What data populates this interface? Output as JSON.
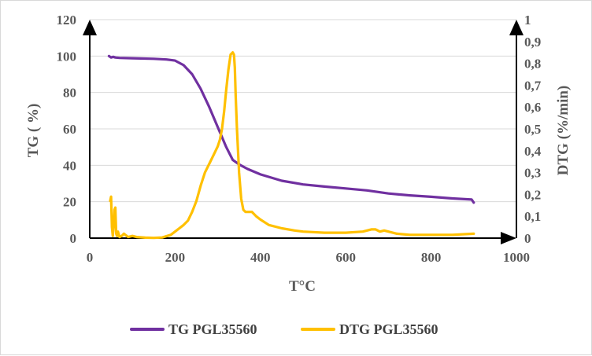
{
  "chart_data": {
    "type": "line",
    "xlabel": "T°C",
    "ylabel_left": "TG ( %)",
    "ylabel_right": "DTG (%/min)",
    "xlim": [
      0,
      1000
    ],
    "ylim_left": [
      0,
      120
    ],
    "ylim_right": [
      0,
      1
    ],
    "x_ticks": [
      "0",
      "200",
      "400",
      "600",
      "800",
      "1000"
    ],
    "y_left_ticks": [
      "0",
      "20",
      "40",
      "60",
      "80",
      "100",
      "120"
    ],
    "y_right_ticks": [
      "0",
      "0,1",
      "0,2",
      "0,3",
      "0,4",
      "0,5",
      "0,6",
      "0,7",
      "0,8",
      "0,9",
      "1"
    ],
    "grid": "horizontal",
    "legend_position": "bottom",
    "colors": {
      "tg": "#7030a0",
      "dtg": "#ffc000",
      "axis": "#000000",
      "grid": "#d9d9d9"
    },
    "series": [
      {
        "name": "TG PGL35560",
        "axis": "left",
        "x": [
          45,
          50,
          55,
          60,
          70,
          100,
          150,
          180,
          200,
          220,
          240,
          260,
          280,
          300,
          320,
          335,
          350,
          370,
          400,
          450,
          500,
          550,
          600,
          650,
          700,
          750,
          800,
          850,
          895,
          900
        ],
        "y": [
          100,
          99.2,
          99.6,
          99.2,
          99.0,
          98.8,
          98.5,
          98.1,
          97.5,
          95.0,
          90.0,
          82.0,
          72.0,
          61.0,
          50.0,
          43.0,
          40.5,
          38.0,
          35.0,
          31.5,
          29.5,
          28.3,
          27.3,
          26.2,
          24.5,
          23.5,
          22.7,
          21.8,
          21.2,
          19.5
        ]
      },
      {
        "name": "DTG PGL35560",
        "axis": "right",
        "x": [
          48,
          50,
          52,
          54,
          56,
          58,
          60,
          62,
          64,
          66,
          70,
          75,
          80,
          90,
          100,
          110,
          130,
          150,
          170,
          190,
          200,
          210,
          220,
          230,
          240,
          250,
          260,
          270,
          280,
          290,
          300,
          305,
          310,
          315,
          320,
          325,
          330,
          335,
          338,
          340,
          342,
          345,
          350,
          355,
          360,
          365,
          370,
          380,
          390,
          400,
          420,
          450,
          480,
          500,
          550,
          600,
          640,
          660,
          670,
          680,
          690,
          700,
          720,
          750,
          800,
          850,
          900
        ],
        "y": [
          0.17,
          0.19,
          0.05,
          0.01,
          0.06,
          0.13,
          0.14,
          0.02,
          0.01,
          0.03,
          0.005,
          0.01,
          0.02,
          0.005,
          0.01,
          0.005,
          0.002,
          0.001,
          0.003,
          0.015,
          0.03,
          0.045,
          0.06,
          0.08,
          0.12,
          0.17,
          0.24,
          0.3,
          0.34,
          0.38,
          0.42,
          0.45,
          0.5,
          0.58,
          0.68,
          0.77,
          0.84,
          0.85,
          0.84,
          0.78,
          0.65,
          0.5,
          0.3,
          0.18,
          0.13,
          0.12,
          0.12,
          0.12,
          0.1,
          0.085,
          0.06,
          0.045,
          0.035,
          0.03,
          0.025,
          0.025,
          0.03,
          0.04,
          0.04,
          0.03,
          0.035,
          0.03,
          0.02,
          0.015,
          0.015,
          0.015,
          0.02
        ]
      }
    ]
  }
}
